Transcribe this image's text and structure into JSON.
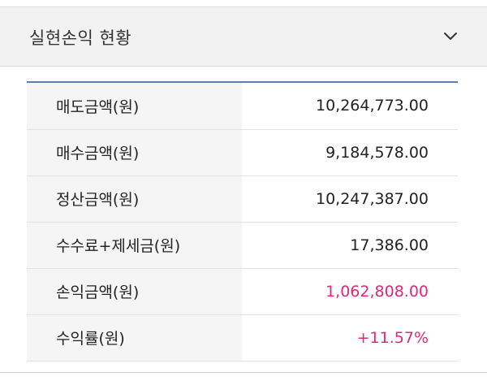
{
  "header": {
    "title": "실현손익 현황",
    "toggle_icon": "chevron-down-icon"
  },
  "summary": {
    "rows": [
      {
        "label": "매도금액(원)",
        "value": "10,264,773.00"
      },
      {
        "label": "매수금액(원)",
        "value": "9,184,578.00"
      },
      {
        "label": "정산금액(원)",
        "value": "10,247,387.00"
      },
      {
        "label": "수수료+제세금(원)",
        "value": "17,386.00"
      },
      {
        "label": "손익금액(원)",
        "value": "1,062,808.00"
      },
      {
        "label": "수익률(원)",
        "value": "+11.57%"
      }
    ]
  },
  "colors": {
    "accent_border": "#5b7fb0",
    "profit": "#e0287a",
    "header_bg": "#f2f2f2",
    "label_bg": "#f5f5f5"
  }
}
